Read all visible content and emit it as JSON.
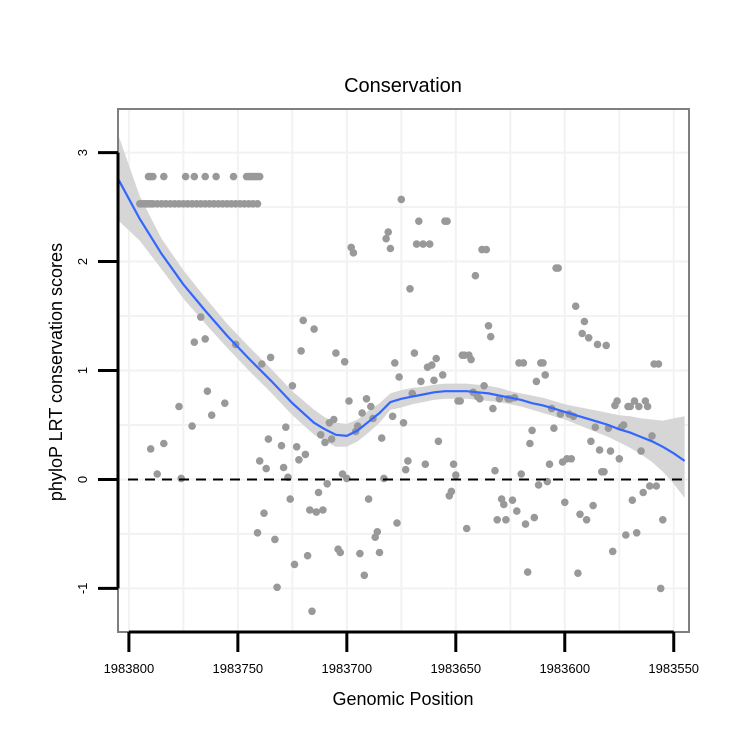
{
  "chart_data": {
    "type": "scatter",
    "title": "Conservation",
    "xlabel": "Genomic Position",
    "ylabel": "phyloP LRT conservation scores",
    "xlim": [
      1983805,
      1983543
    ],
    "ylim": [
      -1.4,
      3.4
    ],
    "x_reversed": true,
    "grid": true,
    "xticks": [
      1983800,
      1983750,
      1983700,
      1983650,
      1983600,
      1983550
    ],
    "xtick_labels": [
      "1983800",
      "1983750",
      "1983700",
      "1983650",
      "1983600",
      "1983550"
    ],
    "yticks": [
      -1,
      0,
      1,
      2,
      3
    ],
    "ytick_labels": [
      "-1",
      "0",
      "1",
      "2",
      "3"
    ],
    "reference_line": {
      "y": 0,
      "style": "dashed"
    },
    "colors": {
      "points": "#999999",
      "smooth": "#3366ff",
      "ribbon": "#d6d6d6",
      "panel_border": "#7f7f7f",
      "grid": "#f2f2f2"
    },
    "points": [
      [
        1983795,
        2.53
      ],
      [
        1983794,
        2.53
      ],
      [
        1983793,
        2.53
      ],
      [
        1983792,
        2.53
      ],
      [
        1983791,
        2.53
      ],
      [
        1983790,
        2.53
      ],
      [
        1983789,
        2.53
      ],
      [
        1983787,
        2.53
      ],
      [
        1983785,
        2.53
      ],
      [
        1983783,
        2.53
      ],
      [
        1983781,
        2.53
      ],
      [
        1983779,
        2.53
      ],
      [
        1983777,
        2.53
      ],
      [
        1983775,
        2.53
      ],
      [
        1983773,
        2.53
      ],
      [
        1983771,
        2.53
      ],
      [
        1983769,
        2.53
      ],
      [
        1983767,
        2.53
      ],
      [
        1983765,
        2.53
      ],
      [
        1983763,
        2.53
      ],
      [
        1983761,
        2.53
      ],
      [
        1983759,
        2.53
      ],
      [
        1983757,
        2.53
      ],
      [
        1983755,
        2.53
      ],
      [
        1983753,
        2.53
      ],
      [
        1983751,
        2.53
      ],
      [
        1983749,
        2.53
      ],
      [
        1983747,
        2.53
      ],
      [
        1983745,
        2.53
      ],
      [
        1983743,
        2.53
      ],
      [
        1983741,
        2.53
      ],
      [
        1983791,
        2.78
      ],
      [
        1983790,
        2.78
      ],
      [
        1983789,
        2.78
      ],
      [
        1983784,
        2.78
      ],
      [
        1983774,
        2.78
      ],
      [
        1983770,
        2.78
      ],
      [
        1983765,
        2.78
      ],
      [
        1983760,
        2.78
      ],
      [
        1983752,
        2.78
      ],
      [
        1983746,
        2.78
      ],
      [
        1983745,
        2.78
      ],
      [
        1983744,
        2.78
      ],
      [
        1983743,
        2.78
      ],
      [
        1983742,
        2.78
      ],
      [
        1983741,
        2.78
      ],
      [
        1983740,
        2.78
      ],
      [
        1983790,
        0.28
      ],
      [
        1983787,
        0.05
      ],
      [
        1983784,
        0.33
      ],
      [
        1983777,
        0.67
      ],
      [
        1983776,
        0.01
      ],
      [
        1983771,
        0.49
      ],
      [
        1983770,
        1.26
      ],
      [
        1983767,
        1.49
      ],
      [
        1983765,
        1.29
      ],
      [
        1983764,
        0.81
      ],
      [
        1983762,
        0.59
      ],
      [
        1983756,
        0.7
      ],
      [
        1983751,
        1.24
      ],
      [
        1983741,
        -0.49
      ],
      [
        1983740,
        0.17
      ],
      [
        1983739,
        1.06
      ],
      [
        1983738,
        -0.31
      ],
      [
        1983737,
        0.1
      ],
      [
        1983736,
        0.37
      ],
      [
        1983735,
        1.12
      ],
      [
        1983733,
        -0.55
      ],
      [
        1983732,
        -0.99
      ],
      [
        1983730,
        0.31
      ],
      [
        1983729,
        0.11
      ],
      [
        1983728,
        0.48
      ],
      [
        1983727,
        0.02
      ],
      [
        1983726,
        -0.18
      ],
      [
        1983725,
        0.86
      ],
      [
        1983724,
        -0.78
      ],
      [
        1983723,
        0.3
      ],
      [
        1983722,
        0.18
      ],
      [
        1983721,
        1.18
      ],
      [
        1983720,
        1.46
      ],
      [
        1983719,
        0.23
      ],
      [
        1983718,
        -0.7
      ],
      [
        1983717,
        -0.28
      ],
      [
        1983716,
        -1.21
      ],
      [
        1983715,
        1.38
      ],
      [
        1983714,
        -0.3
      ],
      [
        1983713,
        -0.12
      ],
      [
        1983712,
        0.41
      ],
      [
        1983711,
        -0.28
      ],
      [
        1983710,
        0.34
      ],
      [
        1983709,
        -0.04
      ],
      [
        1983708,
        0.52
      ],
      [
        1983707,
        0.37
      ],
      [
        1983706,
        0.55
      ],
      [
        1983705,
        1.16
      ],
      [
        1983704,
        -0.64
      ],
      [
        1983703,
        -0.67
      ],
      [
        1983702,
        0.05
      ],
      [
        1983701,
        1.08
      ],
      [
        1983700,
        0.01
      ],
      [
        1983699,
        0.72
      ],
      [
        1983698,
        2.13
      ],
      [
        1983697,
        2.08
      ],
      [
        1983696,
        0.44
      ],
      [
        1983695,
        0.49
      ],
      [
        1983694,
        -0.68
      ],
      [
        1983693,
        0.61
      ],
      [
        1983692,
        -0.88
      ],
      [
        1983691,
        0.74
      ],
      [
        1983690,
        -0.18
      ],
      [
        1983689,
        0.67
      ],
      [
        1983688,
        0.56
      ],
      [
        1983687,
        -0.53
      ],
      [
        1983686,
        -0.48
      ],
      [
        1983685,
        -0.67
      ],
      [
        1983684,
        0.38
      ],
      [
        1983683,
        0.01
      ],
      [
        1983682,
        2.21
      ],
      [
        1983681,
        2.27
      ],
      [
        1983680,
        2.12
      ],
      [
        1983679,
        0.58
      ],
      [
        1983678,
        1.07
      ],
      [
        1983677,
        -0.4
      ],
      [
        1983676,
        0.94
      ],
      [
        1983675,
        2.57
      ],
      [
        1983674,
        0.52
      ],
      [
        1983673,
        0.09
      ],
      [
        1983672,
        0.17
      ],
      [
        1983671,
        1.75
      ],
      [
        1983670,
        0.79
      ],
      [
        1983669,
        1.16
      ],
      [
        1983668,
        2.16
      ],
      [
        1983667,
        2.37
      ],
      [
        1983666,
        0.9
      ],
      [
        1983665,
        2.16
      ],
      [
        1983664,
        0.14
      ],
      [
        1983663,
        1.03
      ],
      [
        1983662,
        2.16
      ],
      [
        1983661,
        1.05
      ],
      [
        1983660,
        0.91
      ],
      [
        1983659,
        1.11
      ],
      [
        1983658,
        0.35
      ],
      [
        1983656,
        0.96
      ],
      [
        1983655,
        2.37
      ],
      [
        1983654,
        2.37
      ],
      [
        1983653,
        -0.15
      ],
      [
        1983652,
        -0.11
      ],
      [
        1983651,
        0.14
      ],
      [
        1983650,
        0.04
      ],
      [
        1983649,
        0.72
      ],
      [
        1983648,
        0.72
      ],
      [
        1983647,
        1.14
      ],
      [
        1983646,
        1.14
      ],
      [
        1983645,
        -0.45
      ],
      [
        1983644,
        1.14
      ],
      [
        1983643,
        1.1
      ],
      [
        1983642,
        0.8
      ],
      [
        1983641,
        1.87
      ],
      [
        1983640,
        0.76
      ],
      [
        1983639,
        0.74
      ],
      [
        1983638,
        2.11
      ],
      [
        1983637,
        0.86
      ],
      [
        1983636,
        2.11
      ],
      [
        1983635,
        1.41
      ],
      [
        1983634,
        1.31
      ],
      [
        1983633,
        0.65
      ],
      [
        1983632,
        0.08
      ],
      [
        1983631,
        -0.37
      ],
      [
        1983630,
        0.74
      ],
      [
        1983629,
        -0.18
      ],
      [
        1983628,
        -0.23
      ],
      [
        1983627,
        -0.37
      ],
      [
        1983626,
        0.74
      ],
      [
        1983625,
        0.74
      ],
      [
        1983624,
        -0.19
      ],
      [
        1983623,
        0.75
      ],
      [
        1983622,
        -0.29
      ],
      [
        1983621,
        1.07
      ],
      [
        1983620,
        0.05
      ],
      [
        1983619,
        1.07
      ],
      [
        1983618,
        -0.41
      ],
      [
        1983617,
        -0.85
      ],
      [
        1983616,
        0.33
      ],
      [
        1983615,
        0.45
      ],
      [
        1983614,
        -0.35
      ],
      [
        1983613,
        0.9
      ],
      [
        1983612,
        -0.05
      ],
      [
        1983611,
        1.07
      ],
      [
        1983610,
        1.07
      ],
      [
        1983609,
        0.96
      ],
      [
        1983608,
        -0.02
      ],
      [
        1983607,
        0.14
      ],
      [
        1983606,
        0.65
      ],
      [
        1983605,
        0.47
      ],
      [
        1983604,
        1.94
      ],
      [
        1983603,
        1.94
      ],
      [
        1983602,
        0.6
      ],
      [
        1983601,
        0.16
      ],
      [
        1983600,
        -0.21
      ],
      [
        1983599,
        0.19
      ],
      [
        1983598,
        0.6
      ],
      [
        1983597,
        0.19
      ],
      [
        1983596,
        0.58
      ],
      [
        1983595,
        1.59
      ],
      [
        1983594,
        -0.86
      ],
      [
        1983593,
        -0.32
      ],
      [
        1983592,
        1.34
      ],
      [
        1983591,
        1.45
      ],
      [
        1983590,
        -0.37
      ],
      [
        1983589,
        1.3
      ],
      [
        1983588,
        0.35
      ],
      [
        1983587,
        -0.24
      ],
      [
        1983586,
        0.48
      ],
      [
        1983585,
        1.24
      ],
      [
        1983584,
        0.27
      ],
      [
        1983583,
        0.07
      ],
      [
        1983582,
        0.07
      ],
      [
        1983581,
        1.23
      ],
      [
        1983580,
        0.47
      ],
      [
        1983579,
        0.26
      ],
      [
        1983578,
        -0.66
      ],
      [
        1983577,
        0.68
      ],
      [
        1983576,
        0.72
      ],
      [
        1983575,
        0.19
      ],
      [
        1983574,
        0.48
      ],
      [
        1983573,
        0.5
      ],
      [
        1983572,
        -0.51
      ],
      [
        1983571,
        0.67
      ],
      [
        1983570,
        0.67
      ],
      [
        1983569,
        -0.19
      ],
      [
        1983568,
        0.72
      ],
      [
        1983567,
        -0.49
      ],
      [
        1983566,
        0.67
      ],
      [
        1983565,
        0.26
      ],
      [
        1983564,
        -0.12
      ],
      [
        1983563,
        0.72
      ],
      [
        1983562,
        0.67
      ],
      [
        1983561,
        -0.06
      ],
      [
        1983560,
        0.4
      ],
      [
        1983559,
        1.06
      ],
      [
        1983558,
        -0.06
      ],
      [
        1983557,
        1.06
      ],
      [
        1983556,
        -1.0
      ],
      [
        1983555,
        -0.37
      ]
    ],
    "smooth": {
      "x": [
        1983805,
        1983795,
        1983785,
        1983775,
        1983765,
        1983755,
        1983745,
        1983735,
        1983725,
        1983715,
        1983710,
        1983705,
        1983700,
        1983695,
        1983690,
        1983685,
        1983680,
        1983675,
        1983670,
        1983665,
        1983660,
        1983655,
        1983650,
        1983645,
        1983640,
        1983635,
        1983630,
        1983625,
        1983620,
        1983615,
        1983610,
        1983605,
        1983600,
        1983595,
        1983590,
        1983585,
        1983580,
        1983575,
        1983570,
        1983565,
        1983560,
        1983555,
        1983550,
        1983545
      ],
      "y": [
        2.76,
        2.39,
        2.07,
        1.79,
        1.55,
        1.32,
        1.11,
        0.91,
        0.7,
        0.52,
        0.46,
        0.41,
        0.4,
        0.45,
        0.53,
        0.61,
        0.71,
        0.74,
        0.76,
        0.78,
        0.8,
        0.81,
        0.81,
        0.81,
        0.8,
        0.79,
        0.77,
        0.75,
        0.73,
        0.7,
        0.68,
        0.65,
        0.62,
        0.59,
        0.56,
        0.53,
        0.5,
        0.46,
        0.43,
        0.39,
        0.35,
        0.3,
        0.24,
        0.17
      ],
      "lower": [
        2.38,
        2.19,
        1.93,
        1.66,
        1.43,
        1.21,
        1.0,
        0.8,
        0.59,
        0.41,
        0.35,
        0.3,
        0.3,
        0.35,
        0.43,
        0.52,
        0.64,
        0.66,
        0.69,
        0.71,
        0.73,
        0.74,
        0.74,
        0.74,
        0.73,
        0.72,
        0.71,
        0.69,
        0.67,
        0.64,
        0.61,
        0.58,
        0.55,
        0.51,
        0.47,
        0.43,
        0.39,
        0.34,
        0.29,
        0.23,
        0.16,
        0.07,
        -0.04,
        -0.17
      ],
      "upper": [
        3.17,
        2.6,
        2.21,
        1.92,
        1.67,
        1.43,
        1.22,
        1.02,
        0.81,
        0.64,
        0.57,
        0.52,
        0.51,
        0.55,
        0.63,
        0.7,
        0.79,
        0.82,
        0.84,
        0.85,
        0.87,
        0.88,
        0.88,
        0.88,
        0.87,
        0.86,
        0.84,
        0.81,
        0.79,
        0.77,
        0.75,
        0.72,
        0.69,
        0.67,
        0.65,
        0.63,
        0.61,
        0.59,
        0.58,
        0.56,
        0.55,
        0.54,
        0.56,
        0.58
      ]
    }
  }
}
